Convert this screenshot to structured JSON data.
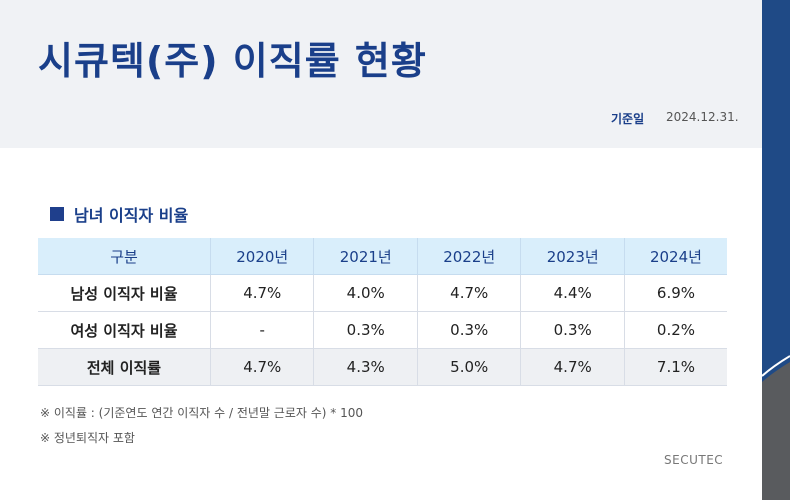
{
  "header": {
    "title": "시큐텍(주) 이직률 현황",
    "basis_label": "기준일",
    "basis_date": "2024.12.31."
  },
  "section": {
    "title": "남녀 이직자 비율",
    "icon": "square-bullet-icon"
  },
  "table": {
    "columns": [
      "구분",
      "2020년",
      "2021년",
      "2022년",
      "2023년",
      "2024년"
    ],
    "rows": [
      {
        "label": "남성 이직자 비율",
        "values": [
          "4.7%",
          "4.0%",
          "4.7%",
          "4.4%",
          "6.9%"
        ]
      },
      {
        "label": "여성 이직자 비율",
        "values": [
          "-",
          "0.3%",
          "0.3%",
          "0.3%",
          "0.2%"
        ]
      },
      {
        "label": "전체 이직률",
        "values": [
          "4.7%",
          "4.3%",
          "5.0%",
          "4.7%",
          "7.1%"
        ]
      }
    ]
  },
  "notes": [
    "※ 이직률 : (기준연도 연간 이직자 수 / 전년말 근로자 수) * 100",
    "※ 정년퇴직자 포함"
  ],
  "footer": {
    "brand": "SECUTEC"
  },
  "colors": {
    "title": "#1a3f8a",
    "header_bg": "#f0f2f5",
    "table_header_bg": "#d9eefb",
    "total_row_bg": "#eef0f3",
    "side_navy": "#1f4a86",
    "side_gray": "#595b5e"
  }
}
